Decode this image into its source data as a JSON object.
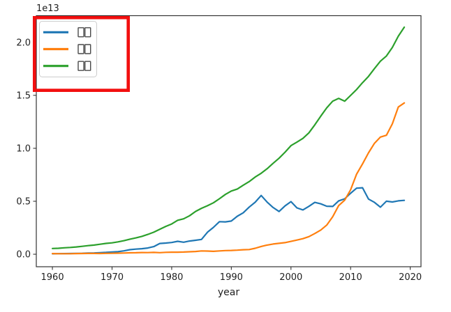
{
  "chart_data": {
    "type": "line",
    "title": "",
    "xlabel": "year",
    "ylabel": "",
    "offset_text": "1e13",
    "unit_note": "y values expressed in units of 1e13, matching the axis offset label",
    "grid": false,
    "xlim": [
      1957.3,
      2021.8
    ],
    "ylim": [
      -0.118,
      2.252
    ],
    "xticks": [
      1960,
      1970,
      1980,
      1990,
      2000,
      2010,
      2020
    ],
    "yticks": [
      0.0,
      0.5,
      1.0,
      1.5,
      2.0
    ],
    "ytick_labels": [
      "0.0",
      "0.5",
      "1.0",
      "1.5",
      "2.0"
    ],
    "legend": {
      "position": "upper left",
      "note": "labels rendered as missing-glyph (tofu) boxes"
    },
    "annotation": {
      "type": "highlight-box",
      "target": "legend",
      "color": "#f20f0f"
    },
    "x": [
      1960,
      1961,
      1962,
      1963,
      1964,
      1965,
      1966,
      1967,
      1968,
      1969,
      1970,
      1971,
      1972,
      1973,
      1974,
      1975,
      1976,
      1977,
      1978,
      1979,
      1980,
      1981,
      1982,
      1983,
      1984,
      1985,
      1986,
      1987,
      1988,
      1989,
      1990,
      1991,
      1992,
      1993,
      1994,
      1995,
      1996,
      1997,
      1998,
      1999,
      2000,
      2001,
      2002,
      2003,
      2004,
      2005,
      2006,
      2007,
      2008,
      2009,
      2010,
      2011,
      2012,
      2013,
      2014,
      2015,
      2016,
      2017,
      2018,
      2019
    ],
    "series": [
      {
        "name": "□□",
        "color": "#1f77b4",
        "values": [
          0.0044,
          0.0054,
          0.0061,
          0.007,
          0.0082,
          0.0091,
          0.0106,
          0.0124,
          0.0147,
          0.0172,
          0.0212,
          0.024,
          0.0318,
          0.0432,
          0.048,
          0.0521,
          0.0586,
          0.0721,
          0.1013,
          0.1055,
          0.1105,
          0.1219,
          0.1134,
          0.1243,
          0.1318,
          0.1399,
          0.2079,
          0.2533,
          0.3072,
          0.3054,
          0.3133,
          0.3584,
          0.3908,
          0.4454,
          0.4907,
          0.5546,
          0.4923,
          0.4412,
          0.4033,
          0.4562,
          0.4968,
          0.4374,
          0.4182,
          0.4519,
          0.4893,
          0.4757,
          0.453,
          0.4515,
          0.5038,
          0.5231,
          0.5759,
          0.6233,
          0.6272,
          0.5212,
          0.4897,
          0.4444,
          0.5004,
          0.4931,
          0.5041,
          0.5082
        ]
      },
      {
        "name": "□□",
        "color": "#ff7f0e",
        "values": [
          0.006,
          0.005,
          0.0047,
          0.0051,
          0.006,
          0.007,
          0.0077,
          0.0073,
          0.0071,
          0.008,
          0.0092,
          0.0099,
          0.0113,
          0.0138,
          0.0144,
          0.0163,
          0.0154,
          0.0175,
          0.015,
          0.0178,
          0.0191,
          0.0196,
          0.0205,
          0.0231,
          0.026,
          0.031,
          0.0301,
          0.0273,
          0.0312,
          0.0348,
          0.0361,
          0.0383,
          0.0427,
          0.0445,
          0.0564,
          0.0734,
          0.0864,
          0.0962,
          0.1029,
          0.1094,
          0.1211,
          0.1339,
          0.1471,
          0.166,
          0.1955,
          0.2286,
          0.2752,
          0.355,
          0.4594,
          0.5102,
          0.6087,
          0.7552,
          0.8532,
          0.957,
          1.0476,
          1.1062,
          1.1233,
          1.231,
          1.3895,
          1.428
        ]
      },
      {
        "name": "□□",
        "color": "#2ca02c",
        "values": [
          0.0543,
          0.0563,
          0.0605,
          0.0639,
          0.0686,
          0.0744,
          0.0815,
          0.0862,
          0.0943,
          0.102,
          0.1073,
          0.1165,
          0.1279,
          0.1425,
          0.1545,
          0.1685,
          0.1873,
          0.2082,
          0.2352,
          0.2627,
          0.2857,
          0.3207,
          0.3344,
          0.3634,
          0.4038,
          0.4339,
          0.458,
          0.4855,
          0.5236,
          0.5642,
          0.5963,
          0.6158,
          0.652,
          0.6859,
          0.7287,
          0.764,
          0.8073,
          0.8578,
          0.9063,
          0.9631,
          1.0251,
          1.0582,
          1.0936,
          1.1458,
          1.2214,
          1.3037,
          1.3815,
          1.4452,
          1.4713,
          1.4449,
          1.4992,
          1.5543,
          1.6197,
          1.6785,
          1.7527,
          1.8225,
          1.8715,
          1.9519,
          2.058,
          2.1433
        ]
      }
    ]
  }
}
